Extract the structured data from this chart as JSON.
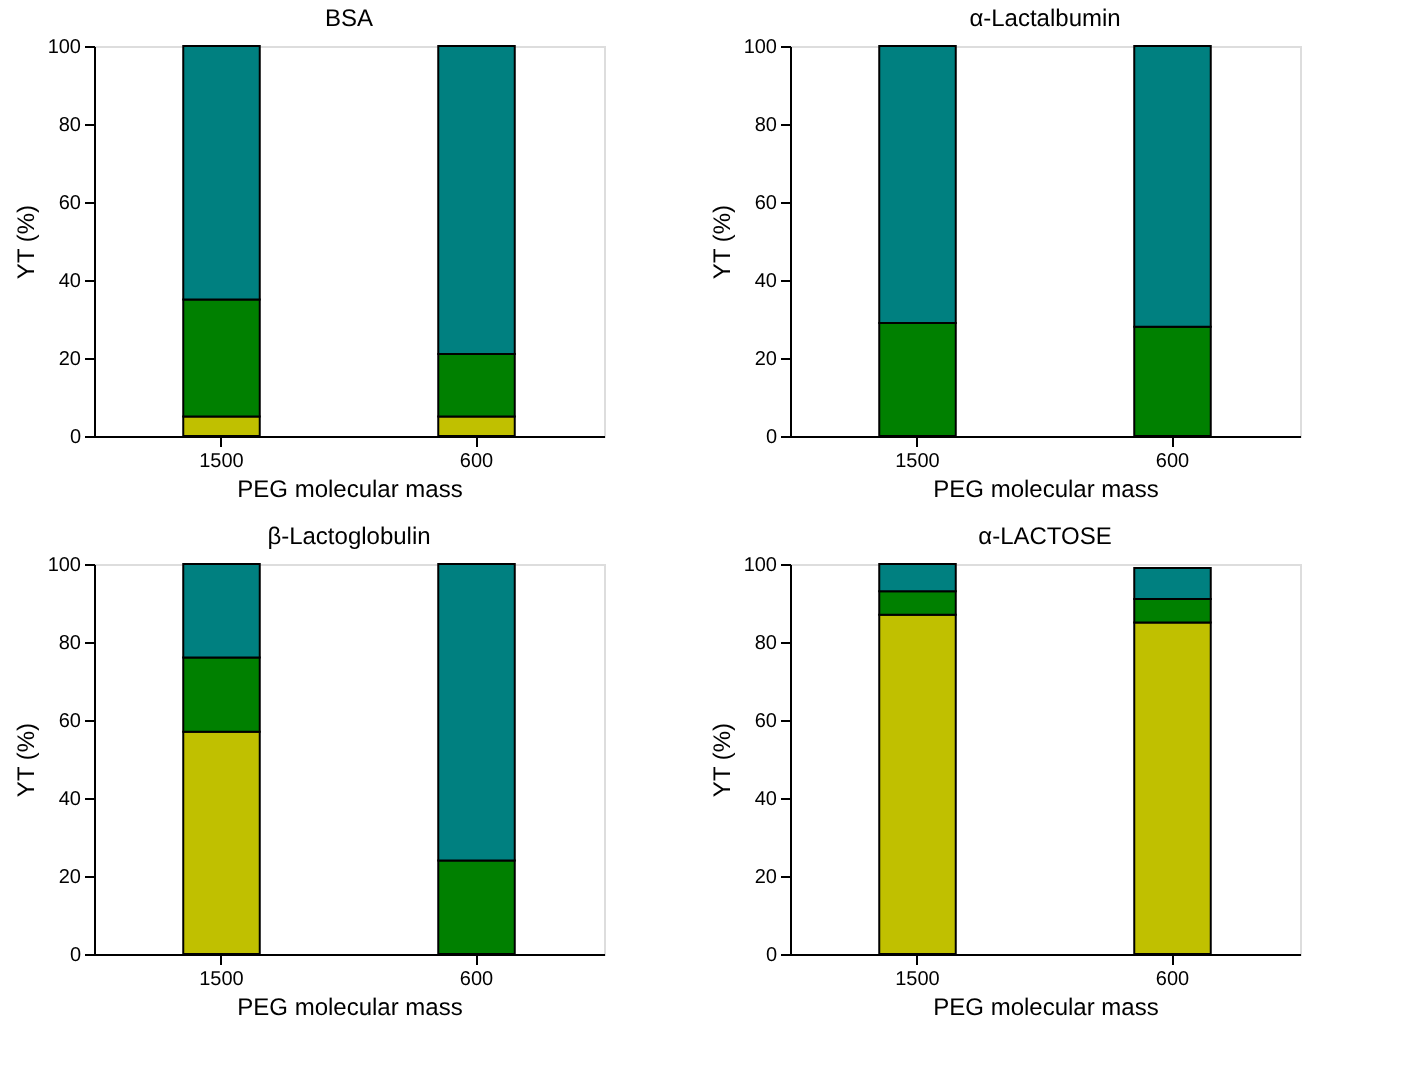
{
  "chart_data": [
    {
      "type": "bar",
      "stacked": true,
      "title": "BSA",
      "xlabel": "PEG molecular mass",
      "ylabel": "YT (%)",
      "categories": [
        "1500",
        "600"
      ],
      "ylim": [
        0,
        100
      ],
      "yticks": [
        0,
        20,
        40,
        60,
        80,
        100
      ],
      "grid": false,
      "legend": false,
      "series": [
        {
          "color": "#c0c000",
          "values": [
            5,
            5
          ]
        },
        {
          "color": "#008000",
          "values": [
            30,
            16
          ]
        },
        {
          "color": "#008080",
          "values": [
            65,
            79
          ]
        }
      ]
    },
    {
      "type": "bar",
      "stacked": true,
      "title": "α-Lactalbumin",
      "xlabel": "PEG molecular mass",
      "ylabel": "YT (%)",
      "categories": [
        "1500",
        "600"
      ],
      "ylim": [
        0,
        100
      ],
      "yticks": [
        0,
        20,
        40,
        60,
        80,
        100
      ],
      "grid": false,
      "legend": false,
      "series": [
        {
          "color": "#008000",
          "values": [
            29,
            28
          ]
        },
        {
          "color": "#008080",
          "values": [
            71,
            72
          ]
        }
      ]
    },
    {
      "type": "bar",
      "stacked": true,
      "title": "β-Lactoglobulin",
      "xlabel": "PEG molecular mass",
      "ylabel": "YT (%)",
      "categories": [
        "1500",
        "600"
      ],
      "ylim": [
        0,
        100
      ],
      "yticks": [
        0,
        20,
        40,
        60,
        80,
        100
      ],
      "grid": false,
      "legend": false,
      "series": [
        {
          "color": "#c0c000",
          "values": [
            57,
            null
          ]
        },
        {
          "color": "#008000",
          "values": [
            19,
            24
          ]
        },
        {
          "color": "#008080",
          "values": [
            24,
            76
          ]
        }
      ]
    },
    {
      "type": "bar",
      "stacked": true,
      "title": "α-LACTOSE",
      "xlabel": "PEG molecular mass",
      "ylabel": "YT (%)",
      "categories": [
        "1500",
        "600"
      ],
      "ylim": [
        0,
        100
      ],
      "yticks": [
        0,
        20,
        40,
        60,
        80,
        100
      ],
      "grid": false,
      "legend": false,
      "series": [
        {
          "color": "#c0c000",
          "values": [
            87,
            85
          ]
        },
        {
          "color": "#008000",
          "values": [
            6,
            6
          ]
        },
        {
          "color": "#008080",
          "values": [
            7,
            8
          ]
        }
      ]
    }
  ]
}
